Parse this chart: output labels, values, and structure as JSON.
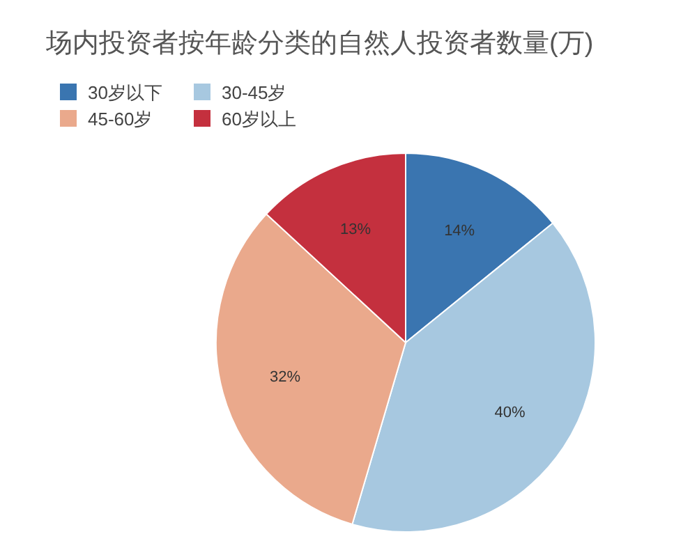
{
  "chart_data": {
    "type": "pie",
    "title": "场内投资者按年龄分类的自然人投资者数量(万)",
    "categories": [
      "30岁以下",
      "30-45岁",
      "45-60岁",
      "60岁以上"
    ],
    "values": [
      14,
      40,
      32,
      13
    ],
    "colors": [
      "#3a75b0",
      "#a7c8e0",
      "#eaa98c",
      "#c4303e"
    ],
    "value_labels": [
      "14%",
      "40%",
      "32%",
      "13%"
    ],
    "legend": "top left"
  }
}
